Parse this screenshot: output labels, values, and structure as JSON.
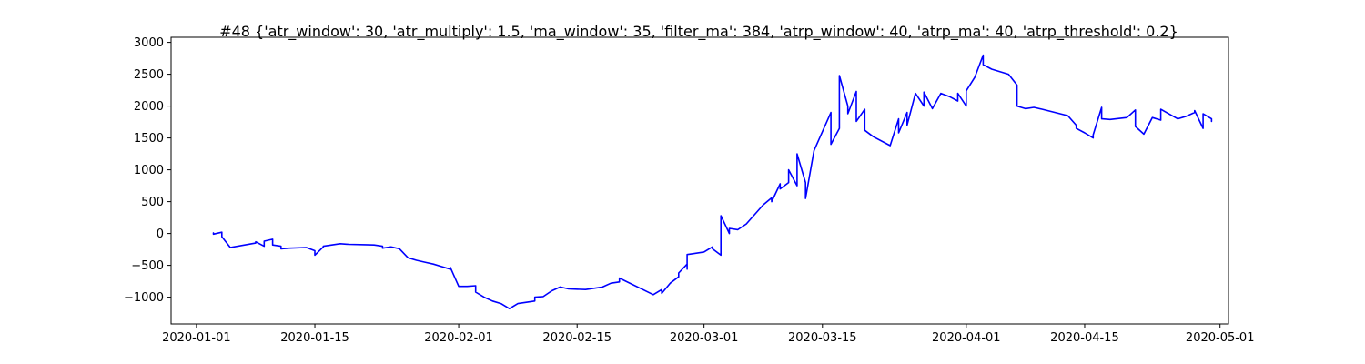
{
  "chart_data": {
    "type": "line",
    "title": "#48 {'atr_window': 30, 'atr_multiply': 1.5, 'ma_window': 35, 'filter_ma': 384, 'atrp_window': 40, 'atrp_ma': 40, 'atrp_threshold': 0.2}",
    "xlabel": "",
    "ylabel": "",
    "x_axis_type": "date",
    "xlim": [
      "2019-12-29",
      "2020-05-02"
    ],
    "ylim": [
      -1420,
      3080
    ],
    "x_ticks": [
      "2020-01-01",
      "2020-01-15",
      "2020-02-01",
      "2020-02-15",
      "2020-03-01",
      "2020-03-15",
      "2020-04-01",
      "2020-04-15",
      "2020-05-01"
    ],
    "y_ticks": [
      -1000,
      -500,
      0,
      500,
      1000,
      1500,
      2000,
      2500,
      3000
    ],
    "grid": false,
    "legend": "none",
    "series": [
      {
        "color": "#0000ff",
        "x": [
          "2020-01-03",
          "2020-01-03",
          "2020-01-03",
          "2020-01-04",
          "2020-01-04",
          "2020-01-04",
          "2020-01-05",
          "2020-01-08",
          "2020-01-08",
          "2020-01-09",
          "2020-01-09",
          "2020-01-10",
          "2020-01-10",
          "2020-01-11",
          "2020-01-11",
          "2020-01-12",
          "2020-01-14",
          "2020-01-15",
          "2020-01-15",
          "2020-01-16",
          "2020-01-16",
          "2020-01-17",
          "2020-01-18",
          "2020-01-19",
          "2020-01-21",
          "2020-01-22",
          "2020-01-23",
          "2020-01-23",
          "2020-01-24",
          "2020-01-25",
          "2020-01-26",
          "2020-01-27",
          "2020-01-28",
          "2020-01-29",
          "2020-01-30",
          "2020-01-31",
          "2020-01-31",
          "2020-02-01",
          "2020-02-02",
          "2020-02-03",
          "2020-02-03",
          "2020-02-04",
          "2020-02-05",
          "2020-02-06",
          "2020-02-07",
          "2020-02-08",
          "2020-02-10",
          "2020-02-10",
          "2020-02-11",
          "2020-02-12",
          "2020-02-13",
          "2020-02-14",
          "2020-02-16",
          "2020-02-17",
          "2020-02-18",
          "2020-02-19",
          "2020-02-20",
          "2020-02-20",
          "2020-02-24",
          "2020-02-25",
          "2020-02-25",
          "2020-02-26",
          "2020-02-27",
          "2020-02-27",
          "2020-02-28",
          "2020-02-28",
          "2020-02-28",
          "2020-03-01",
          "2020-03-02",
          "2020-03-02",
          "2020-03-03",
          "2020-03-03",
          "2020-03-04",
          "2020-03-04",
          "2020-03-05",
          "2020-03-06",
          "2020-03-07",
          "2020-03-08",
          "2020-03-09",
          "2020-03-09",
          "2020-03-10",
          "2020-03-10",
          "2020-03-11",
          "2020-03-11",
          "2020-03-12",
          "2020-03-12",
          "2020-03-13",
          "2020-03-13",
          "2020-03-14",
          "2020-03-16",
          "2020-03-16",
          "2020-03-17",
          "2020-03-17",
          "2020-03-18",
          "2020-03-18",
          "2020-03-19",
          "2020-03-19",
          "2020-03-20",
          "2020-03-20",
          "2020-03-21",
          "2020-03-23",
          "2020-03-24",
          "2020-03-24",
          "2020-03-25",
          "2020-03-25",
          "2020-03-26",
          "2020-03-27",
          "2020-03-27",
          "2020-03-28",
          "2020-03-29",
          "2020-03-30",
          "2020-03-31",
          "2020-03-31",
          "2020-04-01",
          "2020-04-01",
          "2020-04-02",
          "2020-04-03",
          "2020-04-03",
          "2020-04-04",
          "2020-04-06",
          "2020-04-07",
          "2020-04-07",
          "2020-04-08",
          "2020-04-09",
          "2020-04-10",
          "2020-04-13",
          "2020-04-14",
          "2020-04-14",
          "2020-04-15",
          "2020-04-16",
          "2020-04-16",
          "2020-04-17",
          "2020-04-17",
          "2020-04-18",
          "2020-04-20",
          "2020-04-21",
          "2020-04-21",
          "2020-04-22",
          "2020-04-23",
          "2020-04-24",
          "2020-04-24",
          "2020-04-26",
          "2020-04-27",
          "2020-04-28",
          "2020-04-28",
          "2020-04-29",
          "2020-04-29",
          "2020-04-30",
          "2020-04-30"
        ],
        "values": [
          0,
          10,
          -10,
          20,
          -30,
          -50,
          -220,
          -150,
          -130,
          -200,
          -120,
          -90,
          -180,
          -200,
          -240,
          -230,
          -220,
          -270,
          -340,
          -210,
          -200,
          -180,
          -160,
          -170,
          -175,
          -180,
          -200,
          -230,
          -210,
          -240,
          -380,
          -420,
          -450,
          -480,
          -520,
          -560,
          -530,
          -830,
          -830,
          -820,
          -920,
          -1000,
          -1060,
          -1100,
          -1180,
          -1100,
          -1060,
          -1000,
          -990,
          -900,
          -840,
          -870,
          -880,
          -860,
          -840,
          -780,
          -760,
          -700,
          -960,
          -880,
          -940,
          -780,
          -680,
          -620,
          -480,
          -560,
          -330,
          -290,
          -210,
          -240,
          -340,
          280,
          0,
          80,
          60,
          150,
          300,
          450,
          560,
          500,
          780,
          700,
          800,
          1000,
          750,
          1250,
          800,
          550,
          1300,
          1900,
          1400,
          1650,
          2480,
          2000,
          1880,
          2230,
          1760,
          1950,
          1620,
          1520,
          1380,
          1800,
          1580,
          1900,
          1700,
          2200,
          2000,
          2220,
          1960,
          2200,
          2150,
          2080,
          2200,
          2000,
          2240,
          2450,
          2800,
          2650,
          2580,
          2500,
          2330,
          2000,
          1960,
          1980,
          1950,
          1850,
          1700,
          1650,
          1580,
          1500,
          1550,
          1980,
          1800,
          1790,
          1820,
          1940,
          1680,
          1560,
          1820,
          1780,
          1950,
          1800,
          1840,
          1900,
          1930,
          1650,
          1880,
          1800,
          1760
        ]
      }
    ]
  }
}
